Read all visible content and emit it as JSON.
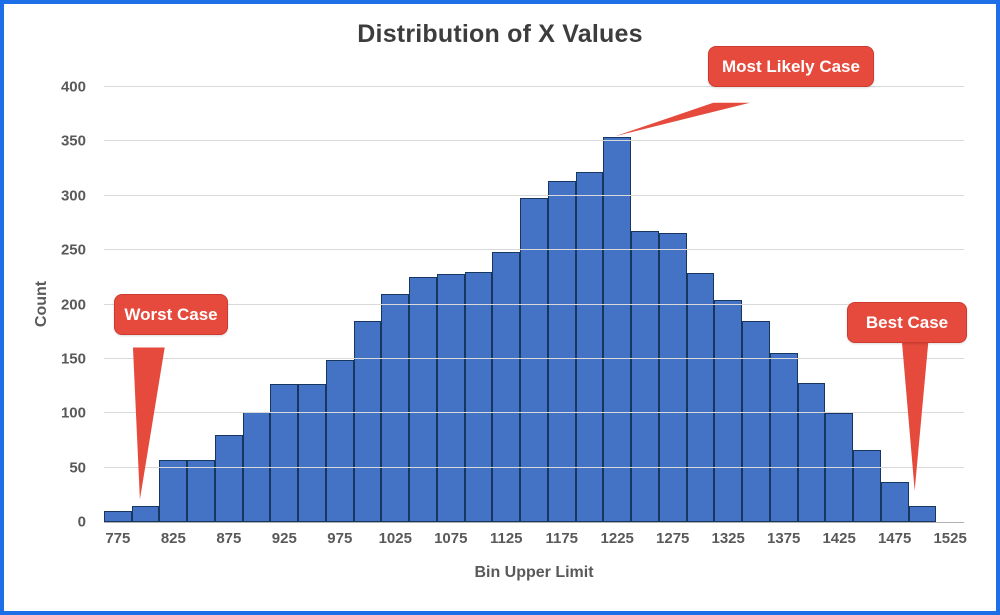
{
  "frame": {
    "border_color": "#1d6fe8"
  },
  "chart_data": {
    "type": "bar",
    "title": "Distribution of X Values",
    "xlabel": "Bin Upper Limit",
    "ylabel": "Count",
    "ylim": [
      0,
      400
    ],
    "ytick_step": 50,
    "yticks": [
      0,
      50,
      100,
      150,
      200,
      250,
      300,
      350,
      400
    ],
    "xticklabels": [
      "775",
      "825",
      "875",
      "925",
      "975",
      "1025",
      "1075",
      "1125",
      "1175",
      "1225",
      "1275",
      "1325",
      "1375",
      "1425",
      "1475",
      "1525"
    ],
    "bin_width": 25,
    "bin_upper_limits": [
      775,
      800,
      825,
      850,
      875,
      900,
      925,
      950,
      975,
      1000,
      1025,
      1050,
      1075,
      1100,
      1125,
      1150,
      1175,
      1200,
      1225,
      1250,
      1275,
      1300,
      1325,
      1350,
      1375,
      1400,
      1425,
      1450,
      1475,
      1500
    ],
    "values": [
      10,
      15,
      57,
      57,
      80,
      101,
      127,
      127,
      149,
      185,
      210,
      225,
      228,
      230,
      248,
      298,
      314,
      322,
      354,
      268,
      266,
      229,
      204,
      185,
      155,
      128,
      100,
      66,
      37,
      15
    ],
    "bar_color": "#4472c4",
    "bar_border_color": "#17375e",
    "grid": true,
    "gridline_color": "#d9d9d9",
    "legend": "none"
  },
  "annotations": [
    {
      "id": "worst-case",
      "label": "Worst Case",
      "color": "#e64a3d"
    },
    {
      "id": "most-likely-case",
      "label": "Most Likely Case",
      "color": "#e64a3d"
    },
    {
      "id": "best-case",
      "label": "Best Case",
      "color": "#e64a3d"
    }
  ]
}
